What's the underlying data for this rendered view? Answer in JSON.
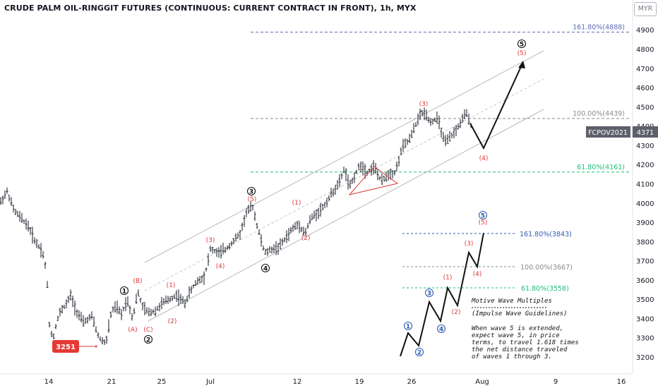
{
  "header": {
    "title": "CRUDE PALM OIL-RINGGIT FUTURES (CONTINUOUS: CURRENT CONTRACT IN FRONT), 1h, MYX",
    "currency": "MYR"
  },
  "price_tag": {
    "symbol": "FCPOV2021",
    "value": "4371"
  },
  "low_tag": "3251",
  "chart_data": {
    "type": "ohlc",
    "y_ticks": [
      3200,
      3300,
      3400,
      3500,
      3600,
      3700,
      3800,
      3900,
      4000,
      4100,
      4200,
      4300,
      4400,
      4500,
      4600,
      4700,
      4800,
      4900
    ],
    "ylim": [
      3140,
      5010
    ],
    "x_ticks": [
      "14",
      "21",
      "25",
      "Jul",
      "12",
      "19",
      "26",
      "Aug",
      "9",
      "16"
    ],
    "fib_levels": [
      {
        "label": "161.80%(4888)",
        "value": 4888,
        "color": "#5b6bb5"
      },
      {
        "label": "100.00%(4439)",
        "value": 4439,
        "color": "#8a8a8a"
      },
      {
        "label": "61.80%(4161)",
        "value": 4161,
        "color": "#1fbf7a"
      }
    ],
    "inset_fib_levels": [
      {
        "label": "161.80%(3843)",
        "color": "#2f5cb0"
      },
      {
        "label": "100.00%(3667)",
        "color": "#8a8a8a"
      },
      {
        "label": "61.80%(3558)",
        "color": "#1fbf7a"
      }
    ],
    "wave_labels": [
      "1",
      "2",
      "3",
      "4",
      "5",
      "(A)",
      "(B)",
      "(C)",
      "(1)",
      "(2)",
      "(3)",
      "(4)",
      "(5)"
    ],
    "note": {
      "title": "Motive Wave Multiples",
      "subtitle": "(Impulse Wave Guidelines)",
      "lines": [
        "When wave 5 is extended,",
        "expect wave 5, in price",
        "terms, to travel 1.618 times",
        "the net distance traveled",
        "of waves 1 through 3."
      ]
    }
  }
}
